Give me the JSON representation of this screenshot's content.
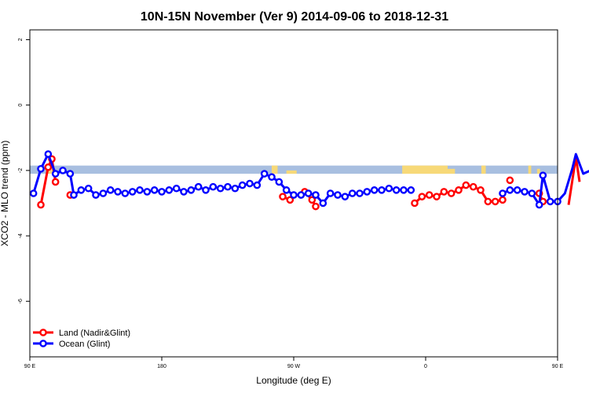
{
  "chart_data": {
    "type": "line",
    "title": "10N-15N November (Ver 9)   2014-09-06 to 2018-12-31",
    "xlabel": "Longitude (deg E)",
    "ylabel": "XCO2 - MLO trend (ppm)",
    "xlim": [
      90,
      450
    ],
    "ylim": [
      -7.7,
      2.3
    ],
    "grid": false,
    "legend_position": "bottom-left",
    "x_ticks": [
      {
        "value": 90,
        "label": "90 E"
      },
      {
        "value": 180,
        "label": "180"
      },
      {
        "value": 270,
        "label": "90 W"
      },
      {
        "value": 360,
        "label": "0"
      },
      {
        "value": 450,
        "label": "90 E"
      },
      {
        "value": 540,
        "label": "180"
      }
    ],
    "y_ticks": [
      {
        "value": 2,
        "label": "2"
      },
      {
        "value": 0,
        "label": "0"
      },
      {
        "value": -2,
        "label": "-2"
      },
      {
        "value": -4,
        "label": "-4"
      },
      {
        "value": -6,
        "label": "-6"
      }
    ],
    "colors": {
      "land": "#ff0000",
      "ocean": "#0000ff",
      "map_ocean": "#a8bfe0",
      "map_land": "#f7d978"
    },
    "map_strip": {
      "y_top": -1.85,
      "y_bottom": -2.1,
      "land_ranges": [
        [
          103,
          106
        ],
        [
          254,
          258
        ],
        [
          266,
          270
        ],
        [
          350,
          370
        ],
        [
          412,
          417
        ],
        [
          476,
          480
        ]
      ],
      "land_spans": [
        {
          "x0": 102.5,
          "x1": 104.5,
          "y0": -1.85,
          "y1": -2.1
        },
        {
          "x0": 104.5,
          "x1": 106,
          "y0": -1.95,
          "y1": -2.1
        },
        {
          "x0": 255,
          "x1": 259,
          "y0": -1.85,
          "y1": -2.1
        },
        {
          "x0": 265,
          "x1": 272,
          "y0": -2.0,
          "y1": -2.1
        },
        {
          "x0": 344,
          "x1": 375,
          "y0": -1.85,
          "y1": -2.1
        },
        {
          "x0": 375,
          "x1": 380,
          "y0": -1.95,
          "y1": -2.1
        },
        {
          "x0": 398,
          "x1": 401,
          "y0": -1.85,
          "y1": -2.1
        },
        {
          "x0": 430,
          "x1": 432,
          "y0": -1.85,
          "y1": -2.1
        },
        {
          "x0": 436,
          "x1": 438,
          "y0": -1.95,
          "y1": -2.1
        }
      ]
    },
    "series": [
      {
        "name": "Land (Nadir&Glint)",
        "color": "#ff0000",
        "segments": [
          {
            "x": [
              97.5,
              102.5,
              105,
              107.5
            ],
            "y": [
              -3.05,
              -1.9,
              -1.65,
              -2.35
            ]
          },
          {
            "x": [
              117.5
            ],
            "y": [
              -2.75
            ]
          },
          {
            "x": [
              262.5,
              267.5
            ],
            "y": [
              -2.8,
              -2.9
            ]
          },
          {
            "x": [
              277.5,
              282.5,
              285
            ],
            "y": [
              -2.65,
              -2.9,
              -3.1
            ]
          },
          {
            "x": [
              352.5,
              357.5,
              362.5,
              367.5,
              372.5,
              377.5,
              382.5,
              387.5,
              392.5,
              397.5,
              402.5,
              407.5,
              412.5
            ],
            "y": [
              -3.0,
              -2.8,
              -2.75,
              -2.8,
              -2.65,
              -2.7,
              -2.6,
              -2.45,
              -2.5,
              -2.6,
              -2.95,
              -2.95,
              -2.9
            ]
          },
          {
            "x": [
              417.5
            ],
            "y": [
              -2.3
            ]
          },
          {
            "x": [
              437.5,
              440
            ],
            "y": [
              -2.7,
              -2.95
            ]
          },
          {
            "x": [
              457.5,
              462.5,
              465
            ],
            "y": [
              -3.05,
              -1.6,
              -2.35
            ]
          },
          {
            "x": [
              477.5
            ],
            "y": [
              -2.75
            ]
          }
        ]
      },
      {
        "name": "Ocean (Glint)",
        "color": "#0000ff",
        "segments": [
          {
            "x": [
              92.5,
              97.5,
              102.5,
              107.5,
              112.5,
              117.5,
              120,
              125,
              130,
              135,
              140,
              145,
              150,
              155,
              160,
              165,
              170,
              175,
              180,
              185,
              190,
              195,
              200,
              205,
              210,
              215,
              220,
              225,
              230,
              235,
              240,
              245,
              250,
              255,
              260,
              265,
              270,
              275,
              280,
              285,
              290,
              295,
              300,
              305,
              310,
              315,
              320,
              325,
              330,
              335,
              340,
              345,
              350
            ],
            "y": [
              -2.7,
              -1.95,
              -1.5,
              -2.1,
              -2.0,
              -2.1,
              -2.75,
              -2.6,
              -2.55,
              -2.75,
              -2.7,
              -2.6,
              -2.65,
              -2.7,
              -2.65,
              -2.6,
              -2.65,
              -2.6,
              -2.65,
              -2.6,
              -2.55,
              -2.65,
              -2.6,
              -2.5,
              -2.6,
              -2.5,
              -2.55,
              -2.5,
              -2.55,
              -2.45,
              -2.4,
              -2.45,
              -2.1,
              -2.2,
              -2.35,
              -2.6,
              -2.75,
              -2.75,
              -2.7,
              -2.75,
              -3.0,
              -2.7,
              -2.75,
              -2.8,
              -2.7,
              -2.7,
              -2.65,
              -2.6,
              -2.6,
              -2.55,
              -2.6,
              -2.6,
              -2.6
            ]
          },
          {
            "x": [
              412.5,
              417.5,
              422.5,
              427.5,
              432.5,
              437.5,
              440,
              445,
              450,
              455,
              460,
              462.5,
              467.5,
              472.5,
              477.5,
              482.5,
              487.5,
              492.5,
              497.5,
              502.5,
              507.5,
              512.5,
              517.5,
              522.5,
              527.5,
              532.5,
              537.5
            ],
            "y": [
              -2.7,
              -2.6,
              -2.6,
              -2.65,
              -2.7,
              -3.05,
              -2.15,
              -2.95,
              -2.95,
              -2.7,
              -1.95,
              -1.5,
              -2.1,
              -2.0,
              -2.1,
              -2.75,
              -2.6,
              -2.55,
              -2.75,
              -2.7,
              -2.6,
              -2.65,
              -2.7,
              -2.65,
              -2.6,
              -2.65,
              -2.6
            ]
          }
        ]
      }
    ]
  }
}
